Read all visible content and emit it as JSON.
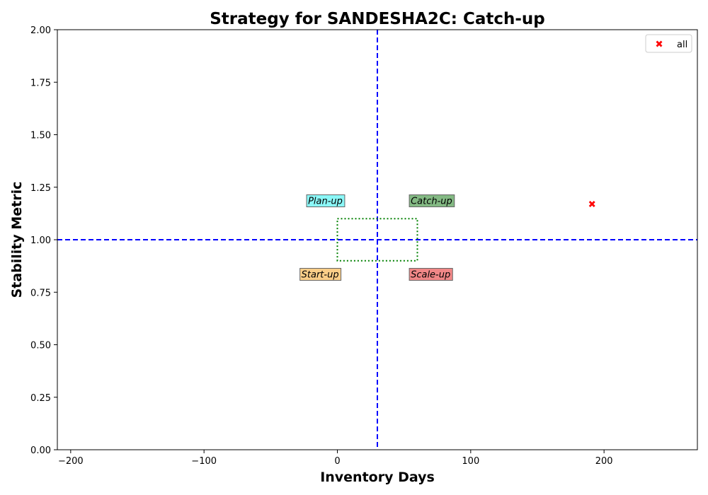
{
  "chart_data": {
    "type": "scatter",
    "title": "Strategy for SANDESHA2C: Catch-up",
    "xlabel": "Inventory Days",
    "ylabel": "Stability Metric",
    "xlim": [
      -210,
      270
    ],
    "ylim": [
      0,
      2
    ],
    "x_ticks": [
      -200,
      -100,
      0,
      100,
      200
    ],
    "x_tick_labels": [
      "−200",
      "−100",
      "0",
      "100",
      "200"
    ],
    "y_ticks": [
      0,
      0.25,
      0.5,
      0.75,
      1.0,
      1.25,
      1.5,
      1.75,
      2.0
    ],
    "y_tick_labels": [
      "0.00",
      "0.25",
      "0.50",
      "0.75",
      "1.00",
      "1.25",
      "1.50",
      "1.75",
      "2.00"
    ],
    "grid": false,
    "reference_lines": {
      "vertical_x": 30,
      "horizontal_y": 1.0,
      "color": "#0000ff",
      "style": "dashed"
    },
    "box": {
      "x": [
        0,
        60
      ],
      "y": [
        0.9,
        1.1
      ],
      "color": "#008000",
      "style": "dotted"
    },
    "quadrant_labels": [
      {
        "text": "Plan-up",
        "x": -22,
        "y": 1.17,
        "color": "#7ff7f7"
      },
      {
        "text": "Catch-up",
        "x": 55,
        "y": 1.17,
        "color": "#76b276"
      },
      {
        "text": "Start-up",
        "x": -27,
        "y": 0.82,
        "color": "#fbc97c"
      },
      {
        "text": "Scale-up",
        "x": 55,
        "y": 0.82,
        "color": "#f07b7b"
      }
    ],
    "series": [
      {
        "name": "all",
        "marker": "X",
        "color": "#ff0000",
        "points": [
          {
            "x": 191,
            "y": 1.17
          }
        ]
      }
    ],
    "legend": {
      "placement": "top-right"
    }
  }
}
